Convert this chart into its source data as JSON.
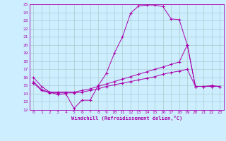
{
  "xlabel": "Windchill (Refroidissement éolien,°C)",
  "bg_color": "#cceeff",
  "line_color": "#aa00aa",
  "grid_color": "#aacccc",
  "xlim": [
    -0.5,
    23.5
  ],
  "ylim": [
    12,
    25
  ],
  "yticks": [
    12,
    13,
    14,
    15,
    16,
    17,
    18,
    19,
    20,
    21,
    22,
    23,
    24,
    25
  ],
  "xticks": [
    0,
    1,
    2,
    3,
    4,
    5,
    6,
    7,
    8,
    9,
    10,
    11,
    12,
    13,
    14,
    15,
    16,
    17,
    18,
    19,
    20,
    21,
    22,
    23
  ],
  "line1_x": [
    0,
    1,
    2,
    3,
    4,
    5,
    6,
    7,
    8,
    9,
    10,
    11,
    12,
    13,
    14,
    15,
    16,
    17,
    18,
    19,
    20,
    21,
    22,
    23
  ],
  "line1_y": [
    16.0,
    14.9,
    14.2,
    13.9,
    14.0,
    12.2,
    13.2,
    13.2,
    15.0,
    16.5,
    19.0,
    21.0,
    23.9,
    24.8,
    24.9,
    24.9,
    24.7,
    23.2,
    23.1,
    20.0,
    14.9,
    14.9,
    15.0,
    14.9
  ],
  "line2_x": [
    0,
    1,
    2,
    3,
    4,
    5,
    6,
    7,
    8,
    9,
    10,
    11,
    12,
    13,
    14,
    15,
    16,
    17,
    18,
    19,
    20,
    21,
    22,
    23
  ],
  "line2_y": [
    15.5,
    14.5,
    14.2,
    14.2,
    14.2,
    14.2,
    14.4,
    14.6,
    14.9,
    15.2,
    15.5,
    15.8,
    16.1,
    16.4,
    16.7,
    17.0,
    17.3,
    17.6,
    17.9,
    20.0,
    14.9,
    14.9,
    14.9,
    14.9
  ],
  "line3_x": [
    0,
    1,
    2,
    3,
    4,
    5,
    6,
    7,
    8,
    9,
    10,
    11,
    12,
    13,
    14,
    15,
    16,
    17,
    18,
    19,
    20,
    21,
    22,
    23
  ],
  "line3_y": [
    15.3,
    14.4,
    14.1,
    14.1,
    14.1,
    14.1,
    14.2,
    14.4,
    14.6,
    14.9,
    15.1,
    15.3,
    15.5,
    15.7,
    15.9,
    16.1,
    16.4,
    16.6,
    16.8,
    17.0,
    14.9,
    14.9,
    14.9,
    14.9
  ]
}
